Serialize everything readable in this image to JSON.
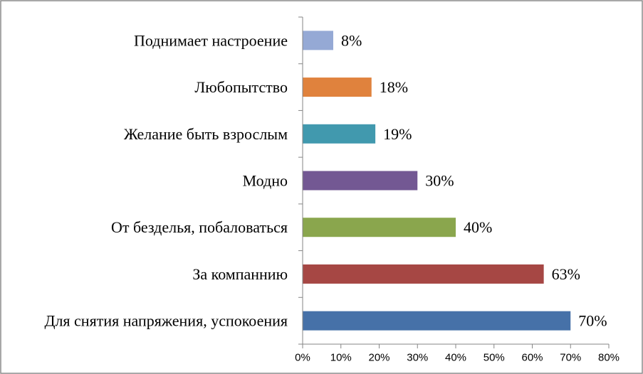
{
  "chart_data": {
    "type": "bar",
    "orientation": "horizontal",
    "categories": [
      "Поднимает настроение",
      "Любопытство",
      "Желание быть взрослым",
      "Модно",
      "От безделья, побаловаться",
      "За компаннию",
      "Для снятия напряжения, успокоения"
    ],
    "values": [
      8,
      18,
      19,
      30,
      40,
      63,
      70
    ],
    "value_labels": [
      "8%",
      "18%",
      "19%",
      "30%",
      "40%",
      "63%",
      "70%"
    ],
    "colors": [
      "#95a9d5",
      "#e0823d",
      "#4199ae",
      "#735893",
      "#8aa64d",
      "#a64744",
      "#4671a8"
    ],
    "xlim": [
      0,
      80
    ],
    "ticks": [
      0,
      10,
      20,
      30,
      40,
      50,
      60,
      70,
      80
    ],
    "tick_labels": [
      "0%",
      "10%",
      "20%",
      "30%",
      "40%",
      "50%",
      "60%",
      "70%",
      "80%"
    ],
    "grid": false,
    "legend": "none"
  }
}
